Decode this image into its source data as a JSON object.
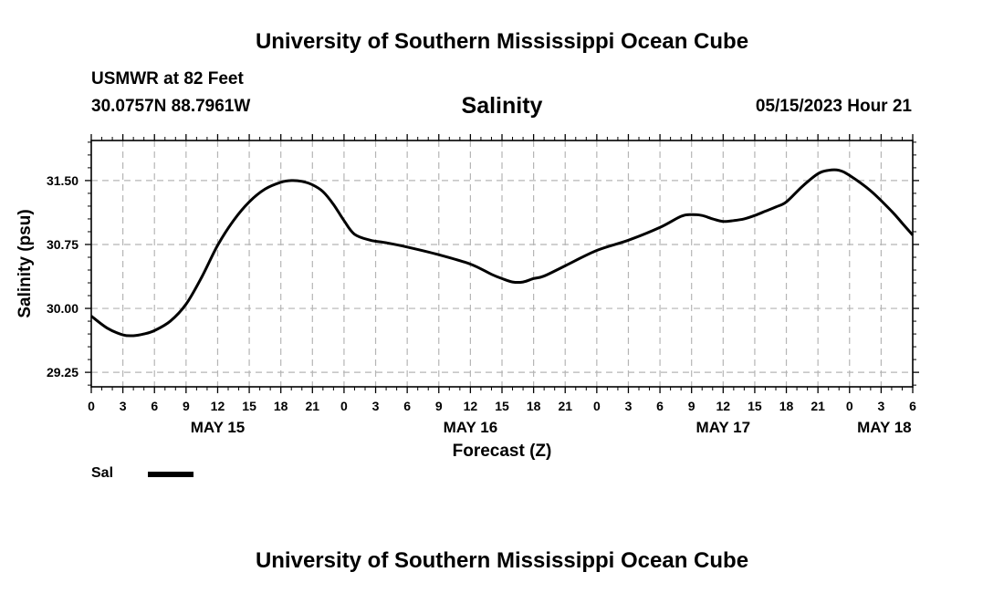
{
  "page": {
    "top_title": "University of Southern Mississippi Ocean Cube",
    "bottom_title": "University of Southern Mississippi Ocean Cube",
    "station_line1": "USMWR at 82 Feet",
    "station_line2": "30.0757N  88.7961W",
    "run_time": "05/15/2023 Hour 21"
  },
  "legend": {
    "label": "Sal",
    "color": "#000000"
  },
  "chart_data": {
    "type": "line",
    "title": "Salinity",
    "xlabel": "Forecast (Z)",
    "ylabel": "Salinity (psu)",
    "xlim": [
      0,
      78
    ],
    "ylim": [
      29.08,
      31.97
    ],
    "yticks": [
      29.25,
      30.0,
      30.75,
      31.5
    ],
    "ytick_labels": [
      "29.25",
      "30.00",
      "30.75",
      "31.50"
    ],
    "grid": true,
    "x_ticks": [
      {
        "x": 0,
        "label": "0"
      },
      {
        "x": 3,
        "label": "3"
      },
      {
        "x": 6,
        "label": "6"
      },
      {
        "x": 9,
        "label": "9"
      },
      {
        "x": 12,
        "label": "12"
      },
      {
        "x": 15,
        "label": "15"
      },
      {
        "x": 18,
        "label": "18"
      },
      {
        "x": 21,
        "label": "21"
      },
      {
        "x": 24,
        "label": "0"
      },
      {
        "x": 27,
        "label": "3"
      },
      {
        "x": 30,
        "label": "6"
      },
      {
        "x": 33,
        "label": "9"
      },
      {
        "x": 36,
        "label": "12"
      },
      {
        "x": 39,
        "label": "15"
      },
      {
        "x": 42,
        "label": "18"
      },
      {
        "x": 45,
        "label": "21"
      },
      {
        "x": 48,
        "label": "0"
      },
      {
        "x": 51,
        "label": "3"
      },
      {
        "x": 54,
        "label": "6"
      },
      {
        "x": 57,
        "label": "9"
      },
      {
        "x": 60,
        "label": "12"
      },
      {
        "x": 63,
        "label": "15"
      },
      {
        "x": 66,
        "label": "18"
      },
      {
        "x": 69,
        "label": "21"
      },
      {
        "x": 72,
        "label": "0"
      },
      {
        "x": 75,
        "label": "3"
      },
      {
        "x": 78,
        "label": "6"
      }
    ],
    "day_labels": [
      {
        "x": 12,
        "label": "MAY 15"
      },
      {
        "x": 36,
        "label": "MAY 16"
      },
      {
        "x": 60,
        "label": "MAY 17"
      },
      {
        "x": 75.3,
        "label": "MAY 18"
      }
    ],
    "series": [
      {
        "name": "Sal",
        "color": "#000000",
        "x": [
          0,
          1.5,
          3,
          4,
          5,
          6,
          7.5,
          9,
          10.5,
          12,
          13.5,
          15,
          16.5,
          18,
          19,
          20,
          21,
          22,
          23,
          24,
          25,
          26.5,
          28,
          30,
          33,
          36,
          38,
          39,
          40,
          41,
          42,
          43,
          45,
          48,
          51,
          54,
          56,
          57,
          58,
          59,
          60,
          61,
          62,
          63,
          64,
          65,
          66,
          67.5,
          69,
          70,
          71,
          72,
          74,
          76,
          77,
          78
        ],
        "y": [
          29.91,
          29.77,
          29.69,
          29.68,
          29.7,
          29.74,
          29.85,
          30.05,
          30.37,
          30.74,
          31.03,
          31.25,
          31.4,
          31.48,
          31.5,
          31.49,
          31.45,
          31.37,
          31.22,
          31.03,
          30.87,
          30.8,
          30.77,
          30.72,
          30.63,
          30.52,
          30.4,
          30.35,
          30.31,
          30.31,
          30.35,
          30.38,
          30.5,
          30.68,
          30.8,
          30.95,
          31.08,
          31.1,
          31.09,
          31.05,
          31.02,
          31.03,
          31.05,
          31.09,
          31.14,
          31.19,
          31.25,
          31.43,
          31.58,
          31.62,
          31.62,
          31.56,
          31.38,
          31.14,
          31.0,
          30.86
        ]
      }
    ]
  }
}
